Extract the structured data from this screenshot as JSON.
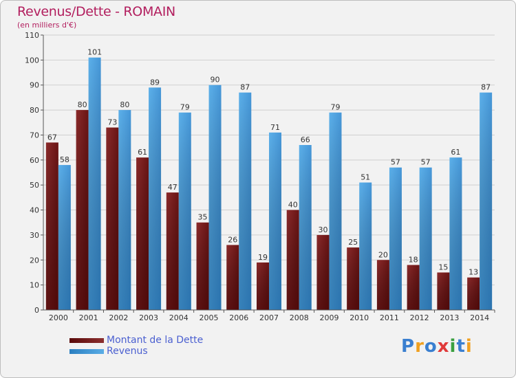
{
  "chart_data": {
    "type": "bar",
    "title": "Revenus/Dette - ROMAIN",
    "subtitle": "(en milliers d'€)",
    "categories": [
      "2000",
      "2001",
      "2002",
      "2003",
      "2004",
      "2005",
      "2006",
      "2007",
      "2008",
      "2009",
      "2010",
      "2011",
      "2012",
      "2013",
      "2014"
    ],
    "series": [
      {
        "name": "Montant de la Dette",
        "color": "#7a1f1f",
        "values": [
          67,
          80,
          73,
          61,
          47,
          35,
          26,
          19,
          40,
          30,
          25,
          20,
          18,
          15,
          13
        ]
      },
      {
        "name": "Revenus",
        "color": "#4a9fe0",
        "values": [
          58,
          101,
          80,
          89,
          79,
          90,
          87,
          71,
          66,
          79,
          51,
          57,
          57,
          61,
          87
        ]
      }
    ],
    "ylim": [
      0,
      110
    ],
    "yticks": [
      0,
      10,
      20,
      30,
      40,
      50,
      60,
      70,
      80,
      90,
      100,
      110
    ],
    "grid": true,
    "legend_position": "bottom-left"
  },
  "logo": {
    "letters": [
      "P",
      "r",
      "o",
      "x",
      "i",
      "t",
      "i"
    ],
    "colors": [
      "#3a7fd0",
      "#f0a020",
      "#3a7fd0",
      "#e03a3a",
      "#3aa040",
      "#3a7fd0",
      "#f0a020"
    ]
  }
}
